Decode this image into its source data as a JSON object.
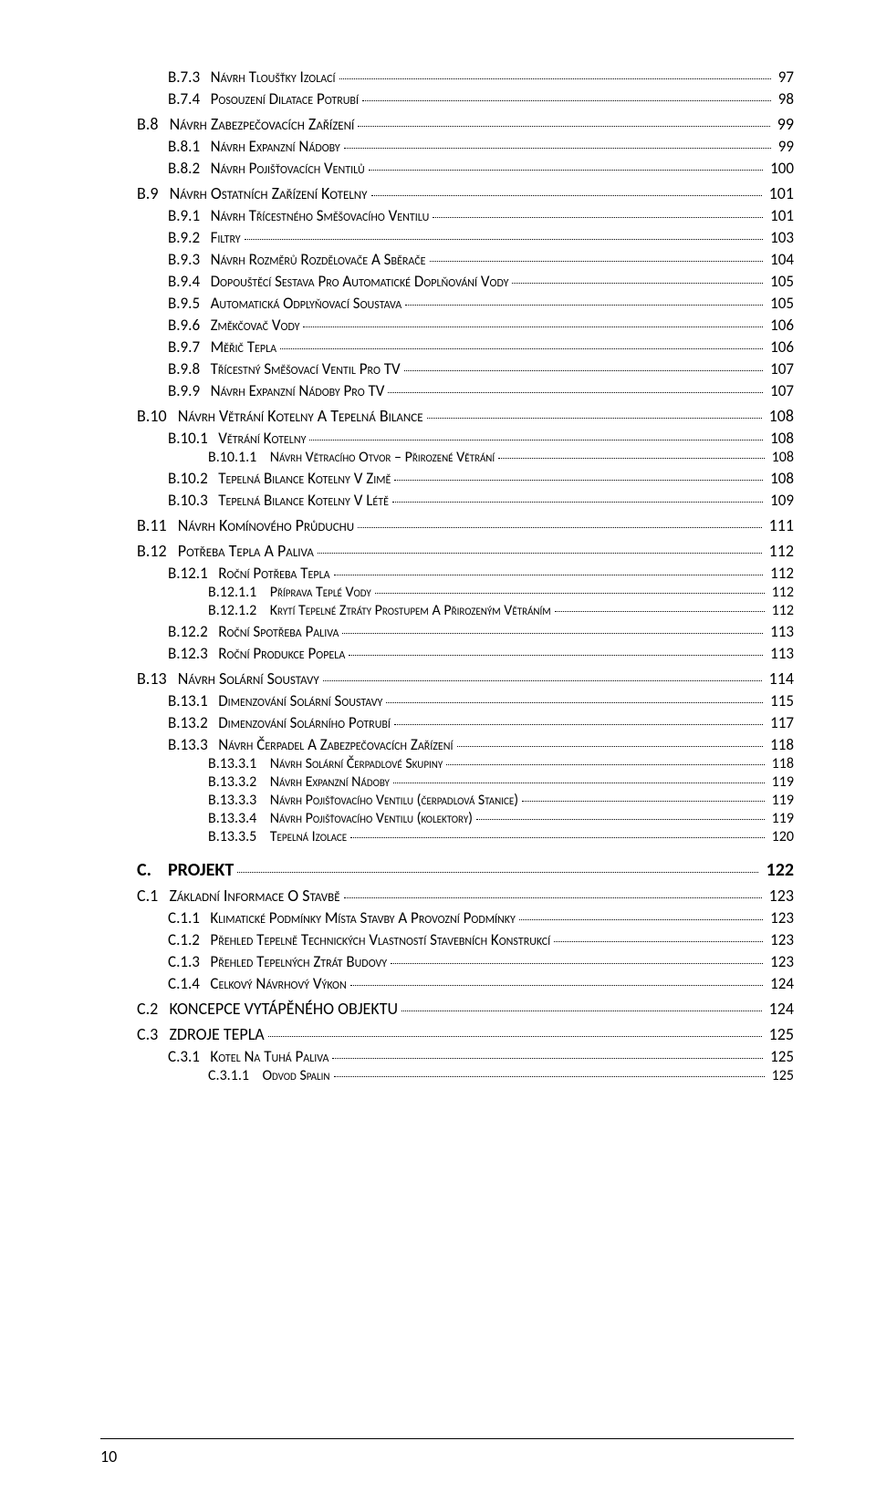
{
  "entries": [
    {
      "level": "lvl-3",
      "num": "B.7.3",
      "title": "Návrh tloušťky izolací",
      "page": 97
    },
    {
      "level": "lvl-3",
      "num": "B.7.4",
      "title": "Posouzení dilatace potrubí",
      "page": 98
    },
    {
      "level": "lvl-2",
      "num": "B.8",
      "title": "Návrh zabezpečovacích zařízení",
      "page": 99
    },
    {
      "level": "lvl-3",
      "num": "B.8.1",
      "title": "Návrh expanzní nádoby",
      "page": 99
    },
    {
      "level": "lvl-3",
      "num": "B.8.2",
      "title": "Návrh pojišťovacích ventilů",
      "page": 100
    },
    {
      "level": "lvl-2",
      "num": "B.9",
      "title": "Návrh ostatních zařízení kotelny",
      "page": 101
    },
    {
      "level": "lvl-3",
      "num": "B.9.1",
      "title": "Návrh třícestného směšovacího ventilu",
      "page": 101
    },
    {
      "level": "lvl-3",
      "num": "B.9.2",
      "title": "Filtry",
      "page": 103
    },
    {
      "level": "lvl-3",
      "num": "B.9.3",
      "title": "Návrh rozměrů rozdělovače a sběrače",
      "page": 104
    },
    {
      "level": "lvl-3",
      "num": "B.9.4",
      "title": "Dopouštěcí sestava pro automatické doplňování vody",
      "page": 105
    },
    {
      "level": "lvl-3",
      "num": "B.9.5",
      "title": "Automatická odplyňovací soustava",
      "page": 105
    },
    {
      "level": "lvl-3",
      "num": "B.9.6",
      "title": "Změkčovač vody",
      "page": 106
    },
    {
      "level": "lvl-3",
      "num": "B.9.7",
      "title": "Měřič tepla",
      "page": 106
    },
    {
      "level": "lvl-3",
      "num": "B.9.8",
      "title": "Třícestný směšovací ventil pro TV",
      "page": 107
    },
    {
      "level": "lvl-3",
      "num": "B.9.9",
      "title": "Návrh expanzní nádoby pro TV",
      "page": 107
    },
    {
      "level": "lvl-2",
      "num": "B.10",
      "title": "Návrh větrání kotelny a tepelná bilance",
      "page": 108
    },
    {
      "level": "lvl-3",
      "num": "B.10.1",
      "title": "Větrání kotelny",
      "page": 108
    },
    {
      "level": "lvl-4",
      "num": "B.10.1.1",
      "title": "Návrh větracího otvor – přirozené větrání",
      "page": 108
    },
    {
      "level": "lvl-3",
      "num": "B.10.2",
      "title": "Tepelná bilance kotelny v zimě",
      "page": 108
    },
    {
      "level": "lvl-3",
      "num": "B.10.3",
      "title": "Tepelná bilance kotelny v létě",
      "page": 109
    },
    {
      "level": "lvl-2",
      "num": "B.11",
      "title": "Návrh komínového průduchu",
      "page": 111
    },
    {
      "level": "lvl-2",
      "num": "B.12",
      "title": "Potřeba tepla a paliva",
      "page": 112
    },
    {
      "level": "lvl-3",
      "num": "B.12.1",
      "title": "Roční potřeba tepla",
      "page": 112
    },
    {
      "level": "lvl-4",
      "num": "B.12.1.1",
      "title": "Příprava teplé vody",
      "page": 112
    },
    {
      "level": "lvl-4",
      "num": "B.12.1.2",
      "title": "Krytí tepelné ztráty prostupem a přirozeným větráním",
      "page": 112
    },
    {
      "level": "lvl-3",
      "num": "B.12.2",
      "title": "Roční spotřeba paliva",
      "page": 113
    },
    {
      "level": "lvl-3",
      "num": "B.12.3",
      "title": "Roční produkce popela",
      "page": 113
    },
    {
      "level": "lvl-2",
      "num": "B.13",
      "title": "Návrh solární soustavy",
      "page": 114
    },
    {
      "level": "lvl-3",
      "num": "B.13.1",
      "title": "Dimenzování solární soustavy",
      "page": 115
    },
    {
      "level": "lvl-3",
      "num": "B.13.2",
      "title": "Dimenzování solárního potrubí",
      "page": 117
    },
    {
      "level": "lvl-3",
      "num": "B.13.3",
      "title": "Návrh čerpadel a zabezpečovacích zařízení",
      "page": 118
    },
    {
      "level": "lvl-4",
      "num": "B.13.3.1",
      "title": "Návrh solární čerpadlové skupiny",
      "page": 118
    },
    {
      "level": "lvl-4",
      "num": "B.13.3.2",
      "title": "Návrh expanzní nádoby",
      "page": 119
    },
    {
      "level": "lvl-4",
      "num": "B.13.3.3",
      "title": "Návrh pojišťovacího ventilu (čerpadlová stanice)",
      "page": 119
    },
    {
      "level": "lvl-4",
      "num": "B.13.3.4",
      "title": "Návrh pojišťovacího ventilu (kolektory)",
      "page": 119
    },
    {
      "level": "lvl-4",
      "num": "B.13.3.5",
      "title": "Tepelná izolace",
      "page": 120
    },
    {
      "level": "lvl-section",
      "num": "C.",
      "title": "PROJEKT",
      "page": 122,
      "plain": true
    },
    {
      "level": "lvl-2",
      "num": "C.1",
      "title": "Základní informace o stavbě",
      "page": 123
    },
    {
      "level": "lvl-3",
      "num": "C.1.1",
      "title": "Klimatické podmínky místa stavby a provozní podmínky",
      "page": 123
    },
    {
      "level": "lvl-3",
      "num": "C.1.2",
      "title": "Přehled tepelně technických vlastností stavebních konstrukcí",
      "page": 123
    },
    {
      "level": "lvl-3",
      "num": "C.1.3",
      "title": "Přehled tepelných ztrát budovy",
      "page": 123
    },
    {
      "level": "lvl-3",
      "num": "C.1.4",
      "title": "Celkový návrhový výkon",
      "page": 124
    },
    {
      "level": "lvl-2",
      "num": "C.2",
      "title": "KONCEPCE VYTÁPĚNÉHO OBJEKTU",
      "page": 124,
      "plain": true
    },
    {
      "level": "lvl-2",
      "num": "C.3",
      "title": "ZDROJE TEPLA",
      "page": 125,
      "plain": true
    },
    {
      "level": "lvl-3",
      "num": "C.3.1",
      "title": "Kotel na tuhá paliva",
      "page": 125
    },
    {
      "level": "lvl-4",
      "num": "C.3.1.1",
      "title": "Odvod spalin",
      "page": 125
    }
  ],
  "footer_page": "10"
}
